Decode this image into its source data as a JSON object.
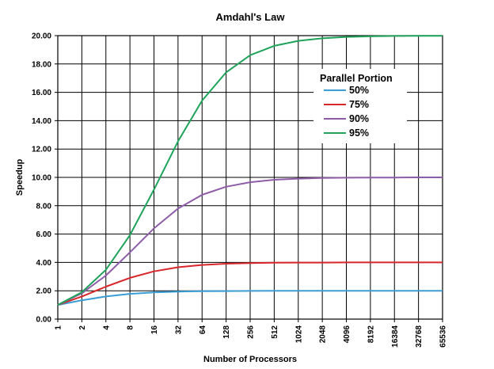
{
  "chart_data": {
    "type": "line",
    "title": "Amdahl's Law",
    "xlabel": "Number of Processors",
    "ylabel": "Speedup",
    "x_scale": "log2",
    "categories": [
      "1",
      "2",
      "4",
      "8",
      "16",
      "32",
      "64",
      "128",
      "256",
      "512",
      "1024",
      "2048",
      "4096",
      "8192",
      "16384",
      "32768",
      "65536"
    ],
    "y_ticks": [
      "0.00",
      "2.00",
      "4.00",
      "6.00",
      "8.00",
      "10.00",
      "12.00",
      "14.00",
      "16.00",
      "18.00",
      "20.00"
    ],
    "ylim": [
      0,
      20
    ],
    "grid": true,
    "legend": {
      "title": "Parallel Portion",
      "position": "top-right"
    },
    "series": [
      {
        "name": "50%",
        "color": "#3a9dd6",
        "values": [
          1.0,
          1.33,
          1.6,
          1.78,
          1.88,
          1.94,
          1.97,
          1.98,
          1.99,
          2.0,
          2.0,
          2.0,
          2.0,
          2.0,
          2.0,
          2.0,
          2.0
        ]
      },
      {
        "name": "75%",
        "color": "#d9262b",
        "values": [
          1.0,
          1.6,
          2.29,
          2.91,
          3.37,
          3.66,
          3.82,
          3.91,
          3.95,
          3.98,
          3.99,
          3.99,
          4.0,
          4.0,
          4.0,
          4.0,
          4.0
        ]
      },
      {
        "name": "90%",
        "color": "#8e5ca8",
        "values": [
          1.0,
          1.82,
          3.08,
          4.71,
          6.4,
          7.8,
          8.77,
          9.34,
          9.66,
          9.83,
          9.91,
          9.96,
          9.98,
          9.99,
          9.99,
          10.0,
          10.0
        ]
      },
      {
        "name": "95%",
        "color": "#1fa35a",
        "values": [
          1.0,
          1.9,
          3.48,
          5.93,
          9.14,
          12.55,
          15.42,
          17.41,
          18.62,
          19.28,
          19.63,
          19.81,
          19.91,
          19.95,
          19.98,
          19.99,
          19.99
        ]
      }
    ]
  }
}
